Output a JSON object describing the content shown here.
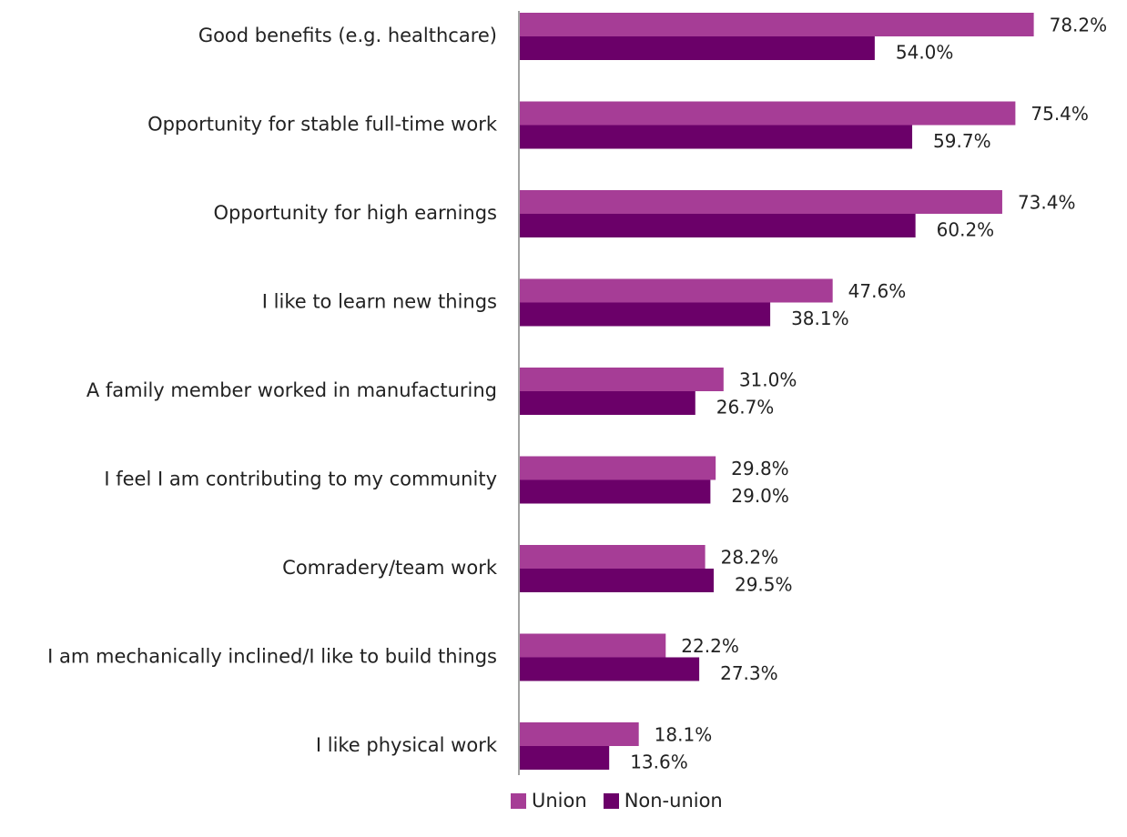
{
  "chart_data": {
    "type": "bar",
    "orientation": "horizontal",
    "categories": [
      "Good benefits (e.g. healthcare)",
      "Opportunity for stable full-time work",
      "Opportunity for high earnings",
      "I like to learn new things",
      "A family member worked in manufacturing",
      "I feel I am contributing to my community",
      "Comradery/team work",
      "I am mechanically inclined/I like to build things",
      "I like physical work"
    ],
    "series": [
      {
        "name": "Union",
        "color": "#a63d96",
        "values": [
          78.2,
          75.4,
          73.4,
          47.6,
          31.0,
          29.8,
          28.2,
          22.2,
          18.1
        ],
        "labels": [
          "78.2%",
          "75.4%",
          "73.4%",
          "47.6%",
          "31.0%",
          "29.8%",
          "28.2%",
          "22.2%",
          "18.1%"
        ]
      },
      {
        "name": "Non-union",
        "color": "#6b0069",
        "values": [
          54.0,
          59.7,
          60.2,
          38.1,
          26.7,
          29.0,
          29.5,
          27.3,
          13.6
        ],
        "labels": [
          "54.0%",
          "59.7%",
          "60.2%",
          "38.1%",
          "26.7%",
          "29.0%",
          "29.5%",
          "27.3%",
          "13.6%"
        ]
      }
    ],
    "xlim": [
      0,
      100
    ],
    "grid": false,
    "legend_position": "bottom"
  }
}
